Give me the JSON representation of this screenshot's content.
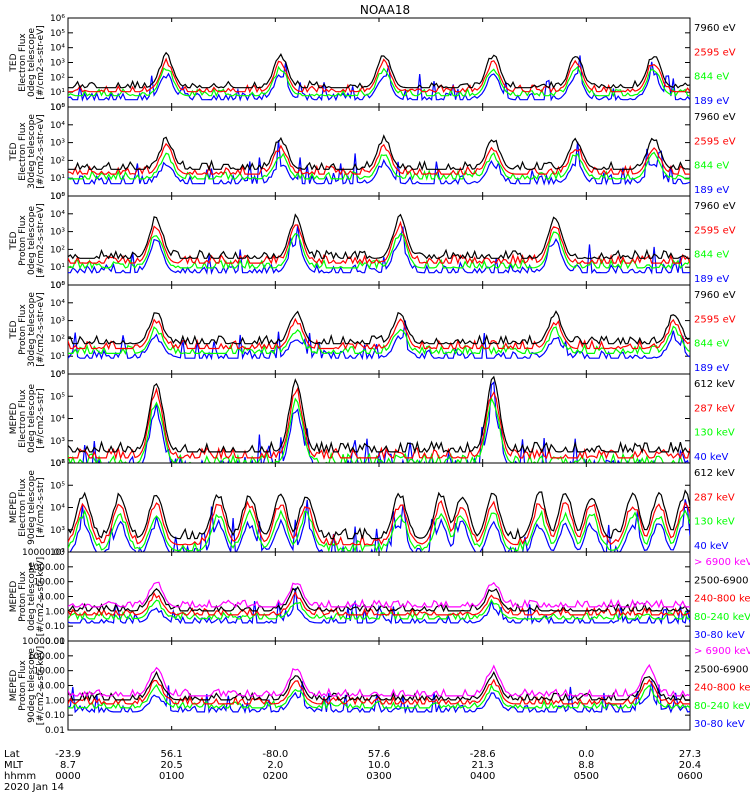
{
  "title": "NOAA18",
  "colors": {
    "black": "#000000",
    "red": "#ff0000",
    "green": "#00ff00",
    "blue": "#0000ff",
    "magenta": "#ff00ff"
  },
  "chart_data": {
    "type": "line",
    "title": "NOAA18",
    "date_label": "2020 Jan 14",
    "time_axis": {
      "row_labels": [
        "Lat",
        "MLT",
        "hhmm"
      ],
      "ticks": [
        {
          "hhmm": "0000",
          "lat": "-23.9",
          "mlt": "8.7"
        },
        {
          "hhmm": "0100",
          "lat": "56.1",
          "mlt": "20.5"
        },
        {
          "hhmm": "0200",
          "lat": "-80.0",
          "mlt": "2.0"
        },
        {
          "hhmm": "0300",
          "lat": "57.6",
          "mlt": "10.0"
        },
        {
          "hhmm": "0400",
          "lat": "-28.6",
          "mlt": "21.3"
        },
        {
          "hhmm": "0500",
          "lat": "0.0",
          "mlt": "8.8"
        },
        {
          "hhmm": "0600",
          "lat": "27.3",
          "mlt": "20.4"
        }
      ]
    },
    "panels": [
      {
        "ylabel": [
          "TED",
          "Electron Flux",
          "0deg telescope",
          "[#/cm2-s-str-eV]"
        ],
        "scale": "log",
        "ylim_exp": [
          0,
          6
        ],
        "tick_labels": [
          "10⁰",
          "10¹",
          "10²",
          "10³",
          "10⁴",
          "10⁵",
          "10⁶"
        ],
        "channels": [
          {
            "label": "7960 eV",
            "color": "black"
          },
          {
            "label": "2595 eV",
            "color": "red"
          },
          {
            "label": "844 eV",
            "color": "green"
          },
          {
            "label": "189 eV",
            "color": "blue"
          }
        ],
        "peaks_hours": [
          0.95,
          2.05,
          3.05,
          4.1,
          4.9,
          5.65
        ],
        "peak_level": 3.5,
        "background": 1.3
      },
      {
        "ylabel": [
          "TED",
          "Electron Flux",
          "30deg telescope",
          "[#/cm2-s-str-eV]"
        ],
        "scale": "log",
        "ylim_exp": [
          0,
          5
        ],
        "tick_labels": [
          "10⁰",
          "10¹",
          "10²",
          "10³",
          "10⁴",
          "10⁵"
        ],
        "channels": [
          {
            "label": "7960 eV",
            "color": "black"
          },
          {
            "label": "2595 eV",
            "color": "red"
          },
          {
            "label": "844 eV",
            "color": "green"
          },
          {
            "label": "189 eV",
            "color": "blue"
          }
        ],
        "peaks_hours": [
          0.95,
          2.05,
          3.05,
          4.1,
          4.9,
          5.65
        ],
        "peak_level": 3.2,
        "background": 1.5
      },
      {
        "ylabel": [
          "TED",
          "Proton Flux",
          "0deg telescope",
          "[#/cm2-s-str-eV]"
        ],
        "scale": "log",
        "ylim_exp": [
          0,
          5
        ],
        "tick_labels": [
          "10⁰",
          "10¹",
          "10²",
          "10³",
          "10⁴",
          "10⁵"
        ],
        "channels": [
          {
            "label": "7960 eV",
            "color": "black"
          },
          {
            "label": "2595 eV",
            "color": "red"
          },
          {
            "label": "844 eV",
            "color": "green"
          },
          {
            "label": "189 eV",
            "color": "blue"
          }
        ],
        "peaks_hours": [
          0.85,
          2.2,
          3.2,
          4.7
        ],
        "peak_level": 3.8,
        "background": 1.5
      },
      {
        "ylabel": [
          "TED",
          "Proton Flux",
          "30deg telescope",
          "[#/cm2-s-str-eV]"
        ],
        "scale": "log",
        "ylim_exp": [
          0,
          5
        ],
        "tick_labels": [
          "10⁰",
          "10¹",
          "10²",
          "10³",
          "10⁴",
          "10⁵"
        ],
        "channels": [
          {
            "label": "7960 eV",
            "color": "black"
          },
          {
            "label": "2595 eV",
            "color": "red"
          },
          {
            "label": "844 eV",
            "color": "green"
          },
          {
            "label": "189 eV",
            "color": "blue"
          }
        ],
        "peaks_hours": [
          0.85,
          2.2,
          3.2,
          4.7,
          5.85
        ],
        "peak_level": 3.4,
        "background": 1.7
      },
      {
        "ylabel": [
          "MEPED",
          "Electron Flux",
          "0deg telescope",
          "[#/cm2-s-str]"
        ],
        "scale": "log",
        "ylim_exp": [
          2,
          6
        ],
        "tick_labels": [
          "10²",
          "10³",
          "10⁴",
          "10⁵",
          "10⁶"
        ],
        "channels": [
          {
            "label": "612 keV",
            "color": "black"
          },
          {
            "label": "287 keV",
            "color": "red"
          },
          {
            "label": "130 keV",
            "color": "green"
          },
          {
            "label": "40 keV",
            "color": "blue"
          }
        ],
        "peaks_hours": [
          0.85,
          2.2,
          4.1
        ],
        "peak_level": 5.7,
        "background": 2.5
      },
      {
        "ylabel": [
          "MEPED",
          "Electron Flux",
          "90deg telescope",
          "[#/cm2-s-str]"
        ],
        "scale": "log",
        "ylim_exp": [
          2,
          6
        ],
        "tick_labels": [
          "10²",
          "10³",
          "10⁴",
          "10⁵",
          "10⁶"
        ],
        "channels": [
          {
            "label": "612 keV",
            "color": "black"
          },
          {
            "label": "287 keV",
            "color": "red"
          },
          {
            "label": "130 keV",
            "color": "green"
          },
          {
            "label": "40 keV",
            "color": "blue"
          }
        ],
        "peaks_hours": [
          0.15,
          0.5,
          0.85,
          1.45,
          1.75,
          2.05,
          2.3,
          3.2,
          3.6,
          3.8,
          4.1,
          4.55,
          4.8,
          5.05,
          5.45,
          5.7,
          5.95
        ],
        "peak_level": 4.6,
        "background": 2.6
      },
      {
        "ylabel": [
          "MEPED",
          "Proton Flux",
          "0deg telescope",
          "[#/cm2-s-str-keV]"
        ],
        "scale": "log",
        "ylim_exp": [
          -2,
          4
        ],
        "tick_labels": [
          "0.01",
          "0.10",
          "1.00",
          "10.00",
          "100.00",
          "1000.00",
          "10000.00"
        ],
        "channels": [
          {
            "label": "> 6900 keV",
            "color": "magenta"
          },
          {
            "label": "2500-6900",
            "color": "black"
          },
          {
            "label": "240-800 keV",
            "color": "red"
          },
          {
            "label": "80-240 keV",
            "color": "green"
          },
          {
            "label": "30-80 keV",
            "color": "blue"
          }
        ],
        "peaks_hours": [
          0.85,
          2.2,
          4.1
        ],
        "peak_level": 2.0,
        "background": 0.3
      },
      {
        "ylabel": [
          "MEPED",
          "Proton Flux",
          "90deg telescope",
          "[#/cm2-s-str-keV]"
        ],
        "scale": "log",
        "ylim_exp": [
          -2,
          4
        ],
        "tick_labels": [
          "0.01",
          "0.10",
          "1.00",
          "10.00",
          "100.00",
          "1000.00",
          "10000.00"
        ],
        "channels": [
          {
            "label": "> 6900 keV",
            "color": "magenta"
          },
          {
            "label": "2500-6900",
            "color": "black"
          },
          {
            "label": "240-800 keV",
            "color": "red"
          },
          {
            "label": "80-240 keV",
            "color": "green"
          },
          {
            "label": "30-80 keV",
            "color": "blue"
          }
        ],
        "peaks_hours": [
          0.85,
          2.2,
          4.1,
          5.6
        ],
        "peak_level": 2.2,
        "background": 0.3
      }
    ]
  }
}
